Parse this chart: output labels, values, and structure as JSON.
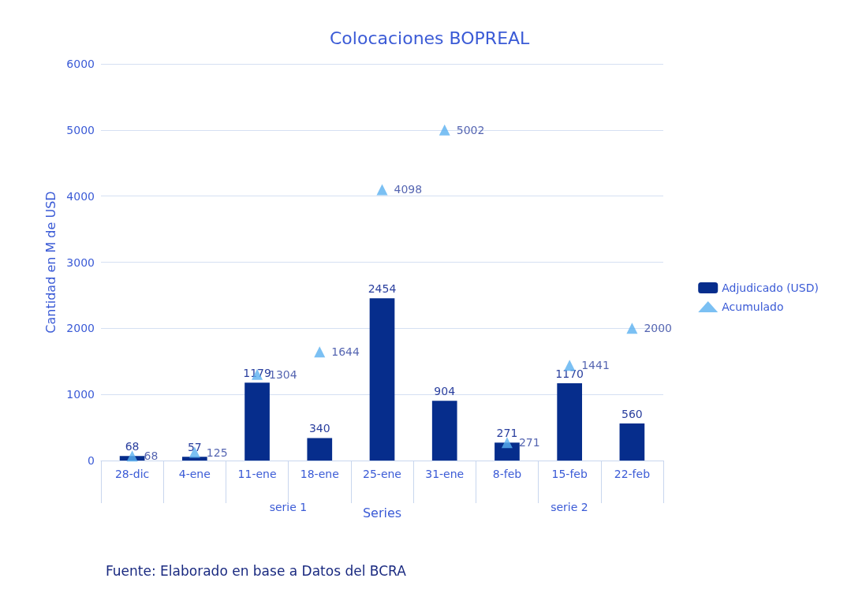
{
  "chart_data": {
    "type": "bar",
    "title": "Colocaciones BOPREAL",
    "xlabel": "Series",
    "ylabel": "Cantidad en M de USD",
    "categories": [
      "28-dic",
      "4-ene",
      "11-ene",
      "18-ene",
      "25-ene",
      "31-ene",
      "8-feb",
      "15-feb",
      "22-feb"
    ],
    "series": [
      {
        "name": "Adjudicado (USD)",
        "color": "#062d8c",
        "values": [
          68,
          57,
          1179,
          340,
          2454,
          904,
          271,
          1170,
          560
        ]
      },
      {
        "name": "Acumulado",
        "type": "scatter",
        "color": "#5ab0f0",
        "values": [
          68,
          125,
          1304,
          1644,
          4098,
          5002,
          271,
          1441,
          2000
        ]
      }
    ],
    "ylim": [
      0,
      6000
    ],
    "yticks": [
      0,
      1000,
      2000,
      3000,
      4000,
      5000,
      6000
    ],
    "grid": "y",
    "legend": "right",
    "marker": "triangle",
    "data_labels": true,
    "annotations": [
      "serie 1",
      "serie 2",
      "Fuente: Elaborado en base a Datos del BCRA"
    ]
  }
}
